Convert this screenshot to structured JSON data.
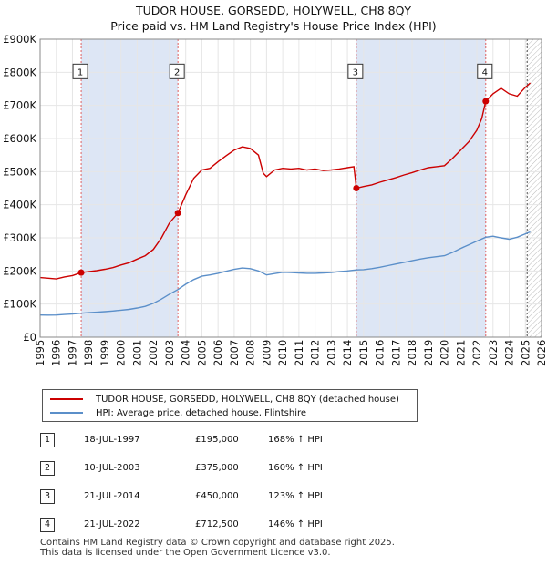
{
  "title_line1": "TUDOR HOUSE, GORSEDD, HOLYWELL, CH8 8QY",
  "title_line2": "Price paid vs. HM Land Registry's House Price Index (HPI)",
  "colors": {
    "property_line": "#cc0000",
    "hpi_line": "#5b8fc9",
    "sale_region": "#dde6f5",
    "marker": "#cc0000",
    "vline": "#e06060",
    "grid": "#e6e6e6"
  },
  "chart_data": {
    "type": "line",
    "x_range": [
      1995,
      2026
    ],
    "ylim": [
      0,
      900000
    ],
    "xticks": [
      "1995",
      "1996",
      "1997",
      "1998",
      "1999",
      "2000",
      "2001",
      "2002",
      "2003",
      "2004",
      "2005",
      "2006",
      "2007",
      "2008",
      "2009",
      "2010",
      "2011",
      "2012",
      "2013",
      "2014",
      "2015",
      "2016",
      "2017",
      "2018",
      "2019",
      "2020",
      "2021",
      "2022",
      "2023",
      "2024",
      "2025",
      "2026"
    ],
    "yticks": [
      {
        "value": 0,
        "label": "£0"
      },
      {
        "value": 100000,
        "label": "£100K"
      },
      {
        "value": 200000,
        "label": "£200K"
      },
      {
        "value": 300000,
        "label": "£300K"
      },
      {
        "value": 400000,
        "label": "£400K"
      },
      {
        "value": 500000,
        "label": "£500K"
      },
      {
        "value": 600000,
        "label": "£600K"
      },
      {
        "value": 700000,
        "label": "£700K"
      },
      {
        "value": 800000,
        "label": "£800K"
      },
      {
        "value": 900000,
        "label": "£900K"
      }
    ],
    "series": [
      {
        "name": "TUDOR HOUSE, GORSEDD, HOLYWELL, CH8 8QY (detached house)",
        "points": [
          [
            1995.0,
            180000
          ],
          [
            1995.5,
            178000
          ],
          [
            1996.0,
            176000
          ],
          [
            1996.5,
            182000
          ],
          [
            1997.0,
            186000
          ],
          [
            1997.54,
            195000
          ],
          [
            1998.0,
            198000
          ],
          [
            1998.5,
            201000
          ],
          [
            1999.0,
            205000
          ],
          [
            1999.5,
            210000
          ],
          [
            2000.0,
            218000
          ],
          [
            2000.5,
            225000
          ],
          [
            2001.0,
            236000
          ],
          [
            2001.5,
            246000
          ],
          [
            2002.0,
            265000
          ],
          [
            2002.5,
            300000
          ],
          [
            2003.0,
            345000
          ],
          [
            2003.52,
            375000
          ],
          [
            2004.0,
            430000
          ],
          [
            2004.5,
            480000
          ],
          [
            2005.0,
            505000
          ],
          [
            2005.5,
            510000
          ],
          [
            2006.0,
            530000
          ],
          [
            2006.5,
            548000
          ],
          [
            2007.0,
            565000
          ],
          [
            2007.5,
            575000
          ],
          [
            2008.0,
            570000
          ],
          [
            2008.5,
            550000
          ],
          [
            2008.8,
            495000
          ],
          [
            2009.0,
            485000
          ],
          [
            2009.5,
            505000
          ],
          [
            2010.0,
            510000
          ],
          [
            2010.5,
            508000
          ],
          [
            2011.0,
            510000
          ],
          [
            2011.5,
            505000
          ],
          [
            2012.0,
            508000
          ],
          [
            2012.5,
            503000
          ],
          [
            2013.0,
            505000
          ],
          [
            2013.5,
            508000
          ],
          [
            2014.0,
            512000
          ],
          [
            2014.4,
            515000
          ],
          [
            2014.55,
            450000
          ],
          [
            2015.0,
            455000
          ],
          [
            2015.5,
            460000
          ],
          [
            2016.0,
            468000
          ],
          [
            2016.5,
            475000
          ],
          [
            2017.0,
            482000
          ],
          [
            2017.5,
            490000
          ],
          [
            2018.0,
            497000
          ],
          [
            2018.5,
            505000
          ],
          [
            2019.0,
            512000
          ],
          [
            2019.5,
            515000
          ],
          [
            2020.0,
            518000
          ],
          [
            2020.5,
            540000
          ],
          [
            2021.0,
            565000
          ],
          [
            2021.5,
            590000
          ],
          [
            2022.0,
            625000
          ],
          [
            2022.3,
            660000
          ],
          [
            2022.55,
            712500
          ],
          [
            2023.0,
            735000
          ],
          [
            2023.5,
            752000
          ],
          [
            2024.0,
            735000
          ],
          [
            2024.5,
            728000
          ],
          [
            2025.0,
            755000
          ],
          [
            2025.3,
            768000
          ]
        ]
      },
      {
        "name": "HPI: Average price, detached house, Flintshire",
        "points": [
          [
            1995.0,
            67000
          ],
          [
            1995.5,
            66500
          ],
          [
            1996.0,
            67000
          ],
          [
            1996.5,
            68500
          ],
          [
            1997.0,
            70000
          ],
          [
            1997.54,
            72500
          ],
          [
            1998.0,
            74000
          ],
          [
            1998.5,
            75500
          ],
          [
            1999.0,
            77000
          ],
          [
            1999.5,
            79000
          ],
          [
            2000.0,
            81500
          ],
          [
            2000.5,
            84000
          ],
          [
            2001.0,
            88000
          ],
          [
            2001.5,
            93000
          ],
          [
            2002.0,
            102000
          ],
          [
            2002.5,
            115000
          ],
          [
            2003.0,
            130000
          ],
          [
            2003.52,
            144000
          ],
          [
            2004.0,
            160000
          ],
          [
            2004.5,
            174000
          ],
          [
            2005.0,
            184000
          ],
          [
            2005.5,
            188000
          ],
          [
            2006.0,
            193000
          ],
          [
            2006.5,
            199000
          ],
          [
            2007.0,
            205000
          ],
          [
            2007.5,
            209000
          ],
          [
            2008.0,
            207000
          ],
          [
            2008.5,
            200000
          ],
          [
            2009.0,
            188000
          ],
          [
            2009.5,
            192000
          ],
          [
            2010.0,
            196000
          ],
          [
            2010.5,
            195000
          ],
          [
            2011.0,
            194000
          ],
          [
            2011.5,
            193000
          ],
          [
            2012.0,
            193000
          ],
          [
            2012.5,
            194000
          ],
          [
            2013.0,
            195000
          ],
          [
            2013.5,
            198000
          ],
          [
            2014.0,
            200000
          ],
          [
            2014.55,
            203000
          ],
          [
            2015.0,
            204000
          ],
          [
            2015.5,
            207000
          ],
          [
            2016.0,
            211000
          ],
          [
            2016.5,
            216000
          ],
          [
            2017.0,
            221000
          ],
          [
            2017.5,
            226000
          ],
          [
            2018.0,
            231000
          ],
          [
            2018.5,
            236000
          ],
          [
            2019.0,
            240000
          ],
          [
            2019.5,
            243000
          ],
          [
            2020.0,
            246000
          ],
          [
            2020.5,
            256000
          ],
          [
            2021.0,
            268000
          ],
          [
            2021.5,
            279000
          ],
          [
            2022.0,
            290000
          ],
          [
            2022.55,
            302000
          ],
          [
            2023.0,
            305000
          ],
          [
            2023.5,
            300000
          ],
          [
            2024.0,
            296000
          ],
          [
            2024.5,
            302000
          ],
          [
            2025.0,
            312000
          ],
          [
            2025.3,
            318000
          ]
        ]
      }
    ],
    "sales": [
      {
        "id": "1",
        "x": 1997.54,
        "price": 195000
      },
      {
        "id": "2",
        "x": 2003.52,
        "price": 375000
      },
      {
        "id": "3",
        "x": 2014.55,
        "price": 450000
      },
      {
        "id": "4",
        "x": 2022.55,
        "price": 712500
      }
    ],
    "sale_label_value": 800000,
    "forecast_start": 2025.0
  },
  "legend": {
    "property": "TUDOR HOUSE, GORSEDD, HOLYWELL, CH8 8QY (detached house)",
    "hpi": "HPI: Average price, detached house, Flintshire"
  },
  "sales_table": [
    {
      "num": "1",
      "date": "18-JUL-1997",
      "price": "£195,000",
      "hpi": "168% ↑ HPI"
    },
    {
      "num": "2",
      "date": "10-JUL-2003",
      "price": "£375,000",
      "hpi": "160% ↑ HPI"
    },
    {
      "num": "3",
      "date": "21-JUL-2014",
      "price": "£450,000",
      "hpi": "123% ↑ HPI"
    },
    {
      "num": "4",
      "date": "21-JUL-2022",
      "price": "£712,500",
      "hpi": "146% ↑ HPI"
    }
  ],
  "footer_line1": "Contains HM Land Registry data © Crown copyright and database right 2025.",
  "footer_line2": "This data is licensed under the Open Government Licence v3.0."
}
